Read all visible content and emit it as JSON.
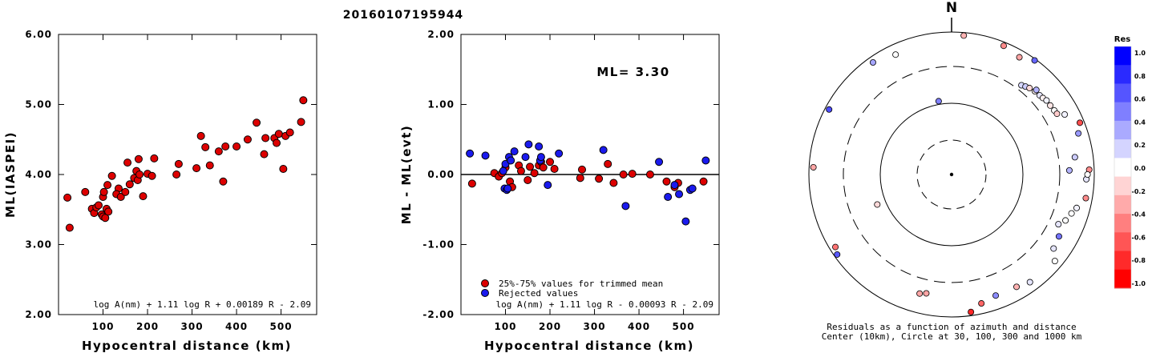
{
  "title": "20160107195944",
  "colors": {
    "red": "#dd0000",
    "blue": "#1a1aee",
    "white": "#ffffff",
    "black": "#000000"
  },
  "chart_data": [
    {
      "type": "scatter",
      "name": "ml-vs-distance",
      "xlabel": "Hypocentral distance (km)",
      "ylabel": "ML(IASPEI)",
      "xlim": [
        0,
        580
      ],
      "ylim": [
        2.0,
        6.0
      ],
      "xticks": [
        "100",
        "200",
        "300",
        "400",
        "500"
      ],
      "yticks": [
        "2.00",
        "3.00",
        "4.00",
        "5.00",
        "6.00"
      ],
      "formula": "log A(nm) + 1.11 log R + 0.00189 R - 2.09",
      "points": [
        [
          20,
          3.67
        ],
        [
          25,
          3.24
        ],
        [
          60,
          3.75
        ],
        [
          75,
          3.51
        ],
        [
          80,
          3.45
        ],
        [
          85,
          3.53
        ],
        [
          90,
          3.56
        ],
        [
          97,
          3.43
        ],
        [
          100,
          3.4
        ],
        [
          100,
          3.68
        ],
        [
          105,
          3.38
        ],
        [
          102,
          3.75
        ],
        [
          110,
          3.85
        ],
        [
          108,
          3.51
        ],
        [
          112,
          3.47
        ],
        [
          120,
          3.98
        ],
        [
          135,
          3.8
        ],
        [
          130,
          3.72
        ],
        [
          140,
          3.68
        ],
        [
          150,
          3.75
        ],
        [
          155,
          4.17
        ],
        [
          160,
          3.86
        ],
        [
          170,
          3.95
        ],
        [
          175,
          4.05
        ],
        [
          178,
          3.92
        ],
        [
          180,
          4.22
        ],
        [
          182,
          4.0
        ],
        [
          190,
          3.69
        ],
        [
          200,
          4.01
        ],
        [
          210,
          3.98
        ],
        [
          215,
          4.23
        ],
        [
          265,
          4.0
        ],
        [
          270,
          4.15
        ],
        [
          310,
          4.09
        ],
        [
          320,
          4.55
        ],
        [
          330,
          4.39
        ],
        [
          340,
          4.13
        ],
        [
          360,
          4.33
        ],
        [
          370,
          3.9
        ],
        [
          375,
          4.4
        ],
        [
          400,
          4.4
        ],
        [
          425,
          4.5
        ],
        [
          445,
          4.74
        ],
        [
          462,
          4.29
        ],
        [
          465,
          4.52
        ],
        [
          485,
          4.52
        ],
        [
          490,
          4.45
        ],
        [
          495,
          4.58
        ],
        [
          505,
          4.08
        ],
        [
          510,
          4.55
        ],
        [
          520,
          4.6
        ],
        [
          545,
          4.75
        ],
        [
          550,
          5.06
        ]
      ]
    },
    {
      "type": "scatter",
      "name": "residuals-vs-distance",
      "xlabel": "Hypocentral distance (km)",
      "ylabel": "ML - ML(evt)",
      "xlim": [
        0,
        580
      ],
      "ylim": [
        -2.0,
        2.0
      ],
      "xticks": [
        "100",
        "200",
        "300",
        "400",
        "500"
      ],
      "yticks": [
        "-2.00",
        "-1.00",
        "0.00",
        "1.00",
        "2.00"
      ],
      "annotation": "ML= 3.30",
      "legend": [
        {
          "label": "25%-75% values for trimmed mean",
          "color": "red"
        },
        {
          "label": "Rejected values",
          "color": "blue"
        }
      ],
      "formula": "log A(nm) + 1.11 log R - 0.00093 R - 2.09",
      "series": [
        {
          "name": "25%-75% values for trimmed mean",
          "points": [
            [
              25,
              -0.13
            ],
            [
              75,
              0.02
            ],
            [
              85,
              -0.03
            ],
            [
              92,
              0.02
            ],
            [
              100,
              0.1
            ],
            [
              110,
              -0.1
            ],
            [
              115,
              -0.18
            ],
            [
              130,
              0.13
            ],
            [
              135,
              0.05
            ],
            [
              150,
              -0.08
            ],
            [
              155,
              0.11
            ],
            [
              165,
              0.02
            ],
            [
              175,
              0.13
            ],
            [
              180,
              0.18
            ],
            [
              185,
              0.1
            ],
            [
              200,
              0.18
            ],
            [
              210,
              0.08
            ],
            [
              268,
              -0.05
            ],
            [
              272,
              0.07
            ],
            [
              310,
              -0.06
            ],
            [
              330,
              0.15
            ],
            [
              343,
              -0.12
            ],
            [
              365,
              0.0
            ],
            [
              385,
              0.01
            ],
            [
              425,
              0.0
            ],
            [
              462,
              -0.1
            ],
            [
              480,
              -0.18
            ],
            [
              488,
              -0.12
            ],
            [
              545,
              -0.1
            ]
          ]
        },
        {
          "name": "Rejected values",
          "points": [
            [
              20,
              0.3
            ],
            [
              55,
              0.27
            ],
            [
              95,
              0.05
            ],
            [
              98,
              -0.2
            ],
            [
              100,
              0.15
            ],
            [
              103,
              -0.22
            ],
            [
              105,
              -0.2
            ],
            [
              108,
              0.25
            ],
            [
              112,
              0.2
            ],
            [
              120,
              0.33
            ],
            [
              145,
              0.25
            ],
            [
              152,
              0.43
            ],
            [
              175,
              0.4
            ],
            [
              178,
              0.2
            ],
            [
              180,
              0.25
            ],
            [
              195,
              -0.15
            ],
            [
              220,
              0.3
            ],
            [
              320,
              0.35
            ],
            [
              370,
              -0.45
            ],
            [
              445,
              0.18
            ],
            [
              465,
              -0.32
            ],
            [
              480,
              -0.15
            ],
            [
              490,
              -0.28
            ],
            [
              505,
              -0.67
            ],
            [
              515,
              -0.22
            ],
            [
              520,
              -0.2
            ],
            [
              550,
              0.2
            ]
          ]
        }
      ]
    },
    {
      "type": "scatter",
      "name": "azimuth-residuals",
      "north_label": "N",
      "caption": [
        "Residuals as a function of azimuth and distance",
        "Center (10km), Circle at 30, 100, 300 and 1000 km"
      ],
      "colorbar": {
        "title": "Res",
        "labels": [
          "1.0",
          "0.8",
          "0.6",
          "0.4",
          "0.2",
          "0.0",
          "-0.2",
          "-0.4",
          "-0.6",
          "-0.8",
          "-1.0"
        ],
        "colors": [
          "#0000ff",
          "#2a2aff",
          "#5555ff",
          "#7f7fff",
          "#aaaaff",
          "#d4d4ff",
          "#ffffff",
          "#ffd4d4",
          "#ffaaaa",
          "#ff7f7f",
          "#ff5555",
          "#ff2a2a",
          "#ff0000"
        ]
      },
      "rings_km": [
        30,
        100,
        300,
        1000
      ],
      "stations": [
        {
          "az": 5,
          "dist": 900,
          "res": -0.3
        },
        {
          "az": 22,
          "dist": 880,
          "res": -0.45
        },
        {
          "az": 30,
          "dist": 780,
          "res": -0.35
        },
        {
          "az": 36,
          "dist": 950,
          "res": 0.6
        },
        {
          "az": -25,
          "dist": 700,
          "res": 0.0
        },
        {
          "az": -35,
          "dist": 820,
          "res": 0.35
        },
        {
          "az": -62,
          "dist": 870,
          "res": 0.7
        },
        {
          "az": -87,
          "dist": 860,
          "res": -0.35
        },
        {
          "az": -125,
          "dist": 900,
          "res": 0.65
        },
        {
          "az": -122,
          "dist": 820,
          "res": -0.55
        },
        {
          "az": -165,
          "dist": 510,
          "res": -0.35
        },
        {
          "az": -168,
          "dist": 480,
          "res": -0.35
        },
        {
          "az": 172,
          "dist": 880,
          "res": -0.85
        },
        {
          "az": 167,
          "dist": 700,
          "res": -0.6
        },
        {
          "az": 160,
          "dist": 620,
          "res": 0.45
        },
        {
          "az": 150,
          "dist": 640,
          "res": -0.3
        },
        {
          "az": 144,
          "dist": 720,
          "res": 0.1
        },
        {
          "az": 130,
          "dist": 760,
          "res": 0.0
        },
        {
          "az": 126,
          "dist": 560,
          "res": 0.1
        },
        {
          "az": 120,
          "dist": 520,
          "res": 0.55
        },
        {
          "az": 112,
          "dist": 500,
          "res": 0.0
        },
        {
          "az": 108,
          "dist": 560,
          "res": 0.0
        },
        {
          "az": 115,
          "dist": 420,
          "res": 0.1
        },
        {
          "az": 105,
          "dist": 630,
          "res": 0.05
        },
        {
          "az": 100,
          "dist": 800,
          "res": -0.45
        },
        {
          "az": 92,
          "dist": 760,
          "res": 0.1
        },
        {
          "az": 88,
          "dist": 840,
          "res": -0.45
        },
        {
          "az": 90,
          "dist": 790,
          "res": 0.0
        },
        {
          "az": 72,
          "dist": 720,
          "res": 0.4
        },
        {
          "az": 62,
          "dist": 600,
          "res": 0.05
        },
        {
          "az": 68,
          "dist": 860,
          "res": -0.7
        },
        {
          "az": 88,
          "dist": 420,
          "res": 0.3
        },
        {
          "az": 82,
          "dist": 530,
          "res": 0.2
        },
        {
          "az": 38,
          "dist": 360,
          "res": 0.15
        },
        {
          "az": 40,
          "dist": 380,
          "res": 0.2
        },
        {
          "az": 42,
          "dist": 400,
          "res": -0.15
        },
        {
          "az": 45,
          "dist": 420,
          "res": -0.05
        },
        {
          "az": 48,
          "dist": 430,
          "res": 0.1
        },
        {
          "az": 50,
          "dist": 440,
          "res": -0.05
        },
        {
          "az": 52,
          "dist": 460,
          "res": 0.05
        },
        {
          "az": 55,
          "dist": 460,
          "res": -0.1
        },
        {
          "az": 58,
          "dist": 470,
          "res": 0.0
        },
        {
          "az": 60,
          "dist": 480,
          "res": -0.2
        },
        {
          "az": 45,
          "dist": 450,
          "res": 0.3
        },
        {
          "az": -10,
          "dist": 110,
          "res": 0.5
        },
        {
          "az": -112,
          "dist": 130,
          "res": -0.15
        }
      ]
    }
  ]
}
